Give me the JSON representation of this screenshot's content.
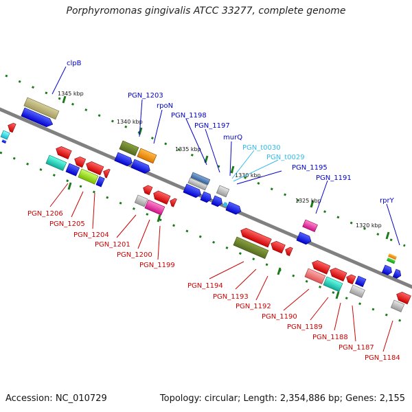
{
  "title": "Porphyromonas gingivalis ATCC 33277, complete genome",
  "footer": {
    "accession": "Accession: NC_010729",
    "summary": "Topology: circular; Length: 2,354,886 bp; Genes: 2,155"
  },
  "scale_marks": [
    "1345 kbp",
    "1340 kbp",
    "1335 kbp",
    "1330 kbp",
    "1325 kbp",
    "1320 kbp"
  ],
  "upper_labels": [
    {
      "text": "clpB",
      "color": "#0000cc"
    },
    {
      "text": "PGN_1203",
      "color": "#0000cc"
    },
    {
      "text": "rpoN",
      "color": "#0000cc"
    },
    {
      "text": "PGN_1198",
      "color": "#0000cc"
    },
    {
      "text": "PGN_1197",
      "color": "#0000cc"
    },
    {
      "text": "murQ",
      "color": "#0000cc"
    },
    {
      "text": "PGN_t0030",
      "color": "#33bbee"
    },
    {
      "text": "PGN_t0029",
      "color": "#33bbee"
    },
    {
      "text": "PGN_1195",
      "color": "#0000cc"
    },
    {
      "text": "PGN_1191",
      "color": "#0000cc"
    },
    {
      "text": "rprY",
      "color": "#0000cc"
    }
  ],
  "lower_labels": [
    {
      "text": "PGN_1206",
      "color": "#cc0000"
    },
    {
      "text": "PGN_1205",
      "color": "#cc0000"
    },
    {
      "text": "PGN_1204",
      "color": "#cc0000"
    },
    {
      "text": "PGN_1201",
      "color": "#cc0000"
    },
    {
      "text": "PGN_1200",
      "color": "#cc0000"
    },
    {
      "text": "PGN_1199",
      "color": "#cc0000"
    },
    {
      "text": "PGN_1194",
      "color": "#cc0000"
    },
    {
      "text": "PGN_1193",
      "color": "#cc0000"
    },
    {
      "text": "PGN_1192",
      "color": "#cc0000"
    },
    {
      "text": "PGN_1190",
      "color": "#cc0000"
    },
    {
      "text": "PGN_1189",
      "color": "#cc0000"
    },
    {
      "text": "PGN_1188",
      "color": "#cc0000"
    },
    {
      "text": "PGN_1187",
      "color": "#cc0000"
    },
    {
      "text": "PGN_1184",
      "color": "#cc0000"
    }
  ],
  "colors": {
    "forward_gene": "#0000ee",
    "reverse_gene": "#ee0000",
    "backbone": "#808080",
    "tick": "#1a7a1a"
  }
}
